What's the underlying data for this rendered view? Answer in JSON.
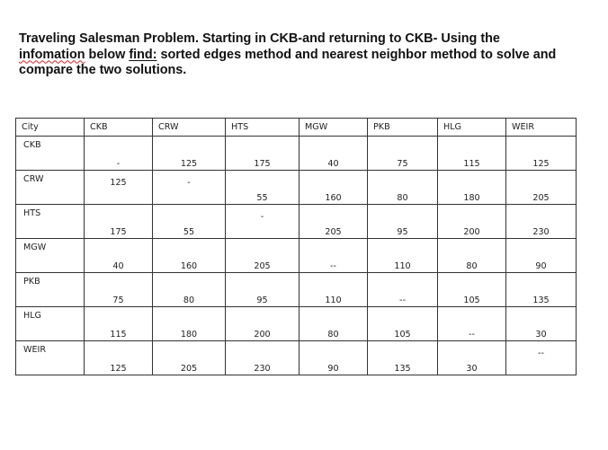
{
  "problem": {
    "line1": "Traveling Salesman Problem. Starting in CKB-and returning to CKB- Using the",
    "word_misspelled": "infomation",
    "middle": " below ",
    "word_find": "find:",
    "line2_rest": " sorted edges method and nearest neighbor method to solve and",
    "line3": "compare the two solutions."
  },
  "table": {
    "corner": "City",
    "columns": [
      "CKB",
      "CRW",
      "HTS",
      "MGW",
      "PKB",
      "HLG",
      "WEIR"
    ],
    "rows": [
      {
        "city": "CKB",
        "values": [
          "-",
          "125",
          "175",
          "40",
          "75",
          "115",
          "125"
        ]
      },
      {
        "city": "CRW",
        "values": [
          "125",
          "-",
          "55",
          "160",
          "80",
          "180",
          "205"
        ]
      },
      {
        "city": "HTS",
        "values": [
          "175",
          "55",
          "-",
          "205",
          "95",
          "200",
          "230"
        ]
      },
      {
        "city": "MGW",
        "values": [
          "40",
          "160",
          "205",
          "--",
          "110",
          "80",
          "90"
        ]
      },
      {
        "city": "PKB",
        "values": [
          "75",
          "80",
          "95",
          "110",
          "--",
          "105",
          "135"
        ]
      },
      {
        "city": "HLG",
        "values": [
          "115",
          "180",
          "200",
          "80",
          "105",
          "--",
          "30"
        ]
      },
      {
        "city": "WEIR",
        "values": [
          "125",
          "205",
          "230",
          "90",
          "135",
          "30",
          "--"
        ]
      }
    ]
  }
}
